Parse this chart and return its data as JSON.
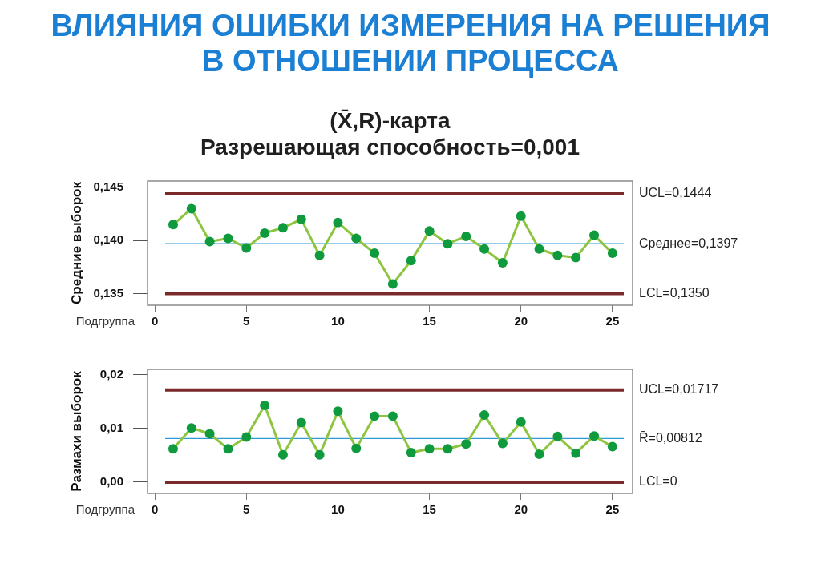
{
  "chart_data": [
    {
      "type": "line",
      "title": "ВЛИЯНИЯ ОШИБКИ ИЗМЕРЕНИЯ НА РЕШЕНИЯ В ОТНОШЕНИИ ПРОЦЕССА",
      "subtitle": "(X̄,R)-карта\nРазрешающая способность=0,001",
      "xlabel": "Подгруппа",
      "ylabel": "Средние выборок",
      "x": [
        1,
        2,
        3,
        4,
        5,
        6,
        7,
        8,
        9,
        10,
        11,
        12,
        13,
        14,
        15,
        16,
        17,
        18,
        19,
        20,
        21,
        22,
        23,
        24,
        25
      ],
      "series": [
        {
          "color": "#8dc541",
          "colors": [
            "#0f9a3e",
            "#0f9a3e",
            "#0f9a3e",
            "#0f9a3e",
            "#0f9a3e",
            "#0f9a3e",
            "#0f9a3e",
            "#0f9a3e",
            "#0f9a3e",
            "#0f9a3e",
            "#0f9a3e",
            "#0f9a3e",
            "#0f9a3e",
            "#0f9a3e",
            "#0f9a3e",
            "#0f9a3e",
            "#0f9a3e",
            "#0f9a3e",
            "#0f9a3e",
            "#0f9a3e",
            "#0f9a3e",
            "#0f9a3e",
            "#0f9a3e",
            "#0f9a3e",
            "#0f9a3e"
          ],
          "values": [
            0.1415,
            0.143,
            0.1399,
            0.1402,
            0.1393,
            0.1407,
            0.1412,
            0.142,
            0.1386,
            0.1417,
            0.1402,
            0.1388,
            0.1359,
            0.1381,
            0.1409,
            0.1397,
            0.1404,
            0.1392,
            0.1379,
            0.1423,
            0.1392,
            0.1386,
            0.1384,
            0.1405,
            0.1388
          ]
        }
      ],
      "xlim": [
        -0.4,
        26.1
      ],
      "xticks": [
        0,
        5,
        10,
        15,
        20,
        25
      ],
      "ylim": [
        0.1339,
        0.1456
      ],
      "yticks": [
        {
          "value": 0.135,
          "label": "0,135"
        },
        {
          "value": 0.14,
          "label": "0,140"
        },
        {
          "value": 0.145,
          "label": "0,145"
        }
      ],
      "ref_lines": [
        {
          "axis": "y",
          "value": 0.1444,
          "label": "UCL=0,1444",
          "color": "#7b2a2c"
        },
        {
          "axis": "y",
          "value": 0.1397,
          "label": "Среднее=0,1397",
          "color": "#2f9ad8"
        },
        {
          "axis": "y",
          "value": 0.135,
          "label": "LCL=0,1350",
          "color": "#7b2a2c"
        }
      ],
      "grid": false,
      "marker": "circle"
    },
    {
      "type": "line",
      "xlabel": "Подгруппа",
      "ylabel": "Размахи выборок",
      "x": [
        1,
        2,
        3,
        4,
        5,
        6,
        7,
        8,
        9,
        10,
        11,
        12,
        13,
        14,
        15,
        16,
        17,
        18,
        19,
        20,
        21,
        22,
        23,
        24,
        25
      ],
      "series": [
        {
          "color": "#8dc541",
          "colors": [
            "#0f9a3e",
            "#0f9a3e",
            "#0f9a3e",
            "#0f9a3e",
            "#0f9a3e",
            "#0f9a3e",
            "#0f9a3e",
            "#0f9a3e",
            "#0f9a3e",
            "#0f9a3e",
            "#0f9a3e",
            "#0f9a3e",
            "#0f9a3e",
            "#0f9a3e",
            "#0f9a3e",
            "#0f9a3e",
            "#0f9a3e",
            "#0f9a3e",
            "#0f9a3e",
            "#0f9a3e",
            "#0f9a3e",
            "#0f9a3e",
            "#0f9a3e",
            "#0f9a3e",
            "#0f9a3e"
          ],
          "values": [
            0.0062,
            0.0101,
            0.009,
            0.0062,
            0.0084,
            0.0143,
            0.0051,
            0.0111,
            0.0051,
            0.0132,
            0.0063,
            0.0123,
            0.0123,
            0.0055,
            0.0062,
            0.0062,
            0.0071,
            0.0125,
            0.0072,
            0.0112,
            0.0052,
            0.0085,
            0.0054,
            0.0086,
            0.0066
          ]
        }
      ],
      "xlim": [
        -0.4,
        26.1
      ],
      "xticks": [
        0,
        5,
        10,
        15,
        20,
        25
      ],
      "ylim": [
        -0.0021,
        0.021
      ],
      "yticks": [
        {
          "value": 0,
          "label": "0,00"
        },
        {
          "value": 0.01,
          "label": "0,01"
        },
        {
          "value": 0.02,
          "label": "0,02"
        }
      ],
      "ref_lines": [
        {
          "axis": "y",
          "value": 0.01717,
          "label": "UCL=0,01717",
          "color": "#7b2a2c"
        },
        {
          "axis": "y",
          "value": 0.00812,
          "label": "R̄=0,00812",
          "color": "#2f9ad8"
        },
        {
          "axis": "y",
          "value": 0,
          "label": "LCL=0",
          "color": "#7b2a2c"
        }
      ],
      "grid": false,
      "marker": "circle"
    }
  ]
}
